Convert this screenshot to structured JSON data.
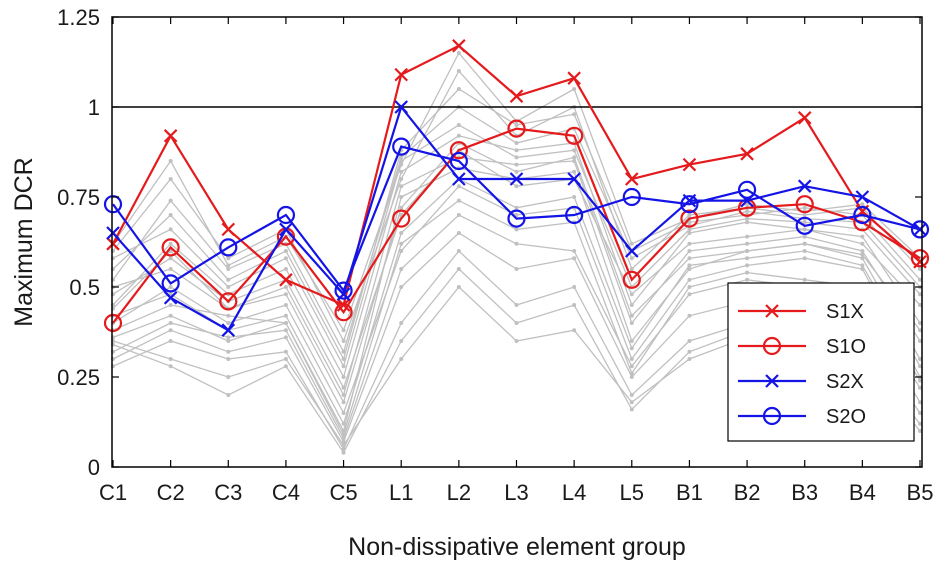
{
  "chart_data": {
    "type": "line",
    "xlabel": "Non-dissipative element group",
    "ylabel": "Maximum DCR",
    "categories": [
      "C1",
      "C2",
      "C3",
      "C4",
      "C5",
      "L1",
      "L2",
      "L3",
      "L4",
      "L5",
      "B1",
      "B2",
      "B3",
      "B4",
      "B5"
    ],
    "ylim": [
      0,
      1.25
    ],
    "yticks": [
      0,
      0.25,
      0.5,
      0.75,
      1,
      1.25
    ],
    "ytick_labels": [
      "0",
      "0.25",
      "0.5",
      "0.75",
      "1",
      "1.25"
    ],
    "reference_line": 1,
    "grid": false,
    "legend_position": "bottom-right",
    "background_series_color": "#c0c0c0",
    "background_series": [
      [
        0.38,
        0.45,
        0.42,
        0.4,
        0.1,
        0.75,
        0.83,
        0.8,
        0.82,
        0.35,
        0.55,
        0.6,
        0.62,
        0.58,
        0.3
      ],
      [
        0.45,
        0.62,
        0.48,
        0.55,
        0.25,
        0.82,
        0.92,
        0.88,
        0.9,
        0.45,
        0.65,
        0.68,
        0.66,
        0.64,
        0.4
      ],
      [
        0.32,
        0.4,
        0.36,
        0.38,
        0.08,
        0.55,
        0.7,
        0.62,
        0.6,
        0.28,
        0.48,
        0.52,
        0.5,
        0.47,
        0.22
      ],
      [
        0.55,
        0.7,
        0.52,
        0.6,
        0.3,
        0.88,
        1.05,
        0.95,
        0.98,
        0.6,
        0.68,
        0.7,
        0.72,
        0.7,
        0.52
      ],
      [
        0.28,
        0.35,
        0.3,
        0.32,
        0.05,
        0.4,
        0.6,
        0.45,
        0.5,
        0.2,
        0.35,
        0.4,
        0.42,
        0.38,
        0.15
      ],
      [
        0.5,
        0.55,
        0.44,
        0.5,
        0.2,
        0.78,
        0.86,
        0.84,
        0.85,
        0.4,
        0.6,
        0.62,
        0.64,
        0.6,
        0.35
      ],
      [
        0.6,
        0.8,
        0.58,
        0.66,
        0.35,
        0.8,
        1.1,
        0.92,
        1.0,
        0.55,
        0.7,
        0.72,
        0.7,
        0.72,
        0.55
      ],
      [
        0.4,
        0.5,
        0.4,
        0.45,
        0.15,
        0.6,
        0.78,
        0.7,
        0.72,
        0.3,
        0.52,
        0.56,
        0.58,
        0.55,
        0.25
      ],
      [
        0.35,
        0.3,
        0.25,
        0.3,
        0.06,
        0.3,
        0.5,
        0.35,
        0.38,
        0.18,
        0.3,
        0.36,
        0.3,
        0.32,
        0.12
      ],
      [
        0.48,
        0.58,
        0.46,
        0.52,
        0.22,
        0.7,
        0.88,
        0.78,
        0.8,
        0.48,
        0.62,
        0.64,
        0.66,
        0.62,
        0.45
      ],
      [
        0.42,
        0.48,
        0.38,
        0.42,
        0.12,
        0.65,
        0.8,
        0.72,
        0.75,
        0.33,
        0.56,
        0.58,
        0.6,
        0.56,
        0.28
      ],
      [
        0.58,
        0.66,
        0.5,
        0.58,
        0.28,
        0.85,
        0.95,
        0.86,
        0.88,
        0.5,
        0.66,
        0.69,
        0.68,
        0.66,
        0.48
      ],
      [
        0.3,
        0.38,
        0.32,
        0.36,
        0.07,
        0.5,
        0.65,
        0.55,
        0.58,
        0.25,
        0.42,
        0.46,
        0.45,
        0.44,
        0.18
      ],
      [
        0.52,
        0.74,
        0.55,
        0.62,
        0.32,
        0.86,
        1.0,
        0.9,
        0.94,
        0.58,
        0.67,
        0.71,
        0.69,
        0.68,
        0.5
      ],
      [
        0.36,
        0.42,
        0.35,
        0.4,
        0.09,
        0.62,
        0.74,
        0.66,
        0.68,
        0.26,
        0.5,
        0.54,
        0.52,
        0.5,
        0.24
      ],
      [
        0.44,
        0.6,
        0.44,
        0.48,
        0.18,
        0.72,
        0.9,
        0.82,
        0.86,
        0.42,
        0.58,
        0.6,
        0.62,
        0.59,
        0.38
      ],
      [
        0.62,
        0.85,
        0.56,
        0.64,
        0.38,
        0.84,
        1.15,
        0.96,
        1.05,
        0.62,
        0.69,
        0.73,
        0.71,
        0.73,
        0.58
      ],
      [
        0.34,
        0.28,
        0.2,
        0.28,
        0.04,
        0.35,
        0.55,
        0.4,
        0.45,
        0.16,
        0.32,
        0.38,
        0.34,
        0.3,
        0.1
      ]
    ],
    "series": [
      {
        "name": "S1X",
        "color": "#e41a1c",
        "marker": "x",
        "values": [
          0.62,
          0.92,
          0.66,
          0.52,
          0.45,
          1.09,
          1.17,
          1.03,
          1.08,
          0.8,
          0.84,
          0.87,
          0.97,
          0.71,
          0.57
        ]
      },
      {
        "name": "S1O",
        "color": "#e41a1c",
        "marker": "o",
        "values": [
          0.4,
          0.61,
          0.46,
          0.64,
          0.43,
          0.69,
          0.88,
          0.94,
          0.92,
          0.52,
          0.69,
          0.72,
          0.73,
          0.68,
          0.58
        ]
      },
      {
        "name": "S2X",
        "color": "#1414e6",
        "marker": "x",
        "values": [
          0.65,
          0.47,
          0.38,
          0.66,
          0.48,
          1.0,
          0.8,
          0.8,
          0.8,
          0.6,
          0.74,
          0.74,
          0.78,
          0.75,
          0.66
        ]
      },
      {
        "name": "S2O",
        "color": "#1414e6",
        "marker": "o",
        "values": [
          0.73,
          0.51,
          0.61,
          0.7,
          0.49,
          0.89,
          0.85,
          0.69,
          0.7,
          0.75,
          0.73,
          0.77,
          0.67,
          0.7,
          0.66
        ]
      }
    ]
  }
}
